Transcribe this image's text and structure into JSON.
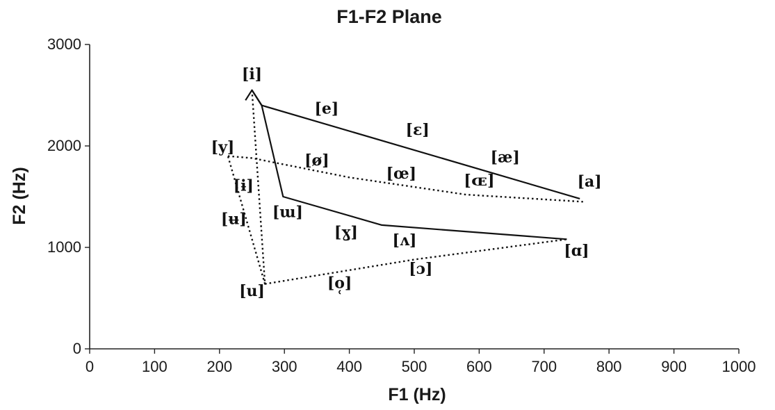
{
  "chart_data": {
    "type": "line",
    "title": "F1-F2 Plane",
    "xlabel": "F1 (Hz)",
    "ylabel": "F2 (Hz)",
    "xlim": [
      0,
      1000
    ],
    "ylim": [
      0,
      3000
    ],
    "x_ticks": [
      0,
      100,
      200,
      300,
      400,
      500,
      600,
      700,
      800,
      900,
      1000
    ],
    "y_ticks": [
      0,
      1000,
      2000,
      3000
    ],
    "grid": false,
    "series": [
      {
        "style": "solid",
        "points": [
          [
            240,
            2450
          ],
          [
            250,
            2550
          ],
          [
            265,
            2400
          ],
          [
            755,
            1480
          ]
        ]
      },
      {
        "style": "solid",
        "points": [
          [
            250,
            2550
          ],
          [
            265,
            2400
          ],
          [
            298,
            1500
          ],
          [
            450,
            1220
          ],
          [
            735,
            1080
          ]
        ]
      },
      {
        "style": "dotted",
        "points": [
          [
            213,
            1900
          ],
          [
            250,
            1880
          ],
          [
            400,
            1690
          ],
          [
            580,
            1520
          ],
          [
            760,
            1450
          ]
        ]
      },
      {
        "style": "dotted",
        "points": [
          [
            270,
            640
          ],
          [
            500,
            880
          ],
          [
            735,
            1080
          ]
        ]
      },
      {
        "style": "dotted",
        "points": [
          [
            250,
            2550
          ],
          [
            270,
            640
          ],
          [
            213,
            1900
          ]
        ]
      }
    ],
    "vowel_labels": [
      {
        "text": "[i]",
        "x": 250,
        "y": 2700
      },
      {
        "text": "[e]",
        "x": 365,
        "y": 2360
      },
      {
        "text": "[ɛ]",
        "x": 505,
        "y": 2150
      },
      {
        "text": "[æ]",
        "x": 640,
        "y": 1880
      },
      {
        "text": "[a]",
        "x": 770,
        "y": 1640
      },
      {
        "text": "[y]",
        "x": 205,
        "y": 1980
      },
      {
        "text": "[ø]",
        "x": 350,
        "y": 1850
      },
      {
        "text": "[œ]",
        "x": 480,
        "y": 1720
      },
      {
        "text": "[ɶ]",
        "x": 600,
        "y": 1650
      },
      {
        "text": "[ɨ]",
        "x": 237,
        "y": 1600
      },
      {
        "text": "[ʉ]",
        "x": 222,
        "y": 1270
      },
      {
        "text": "[ɯ]",
        "x": 305,
        "y": 1340
      },
      {
        "text": "[ɣ]",
        "x": 395,
        "y": 1140
      },
      {
        "text": "[ʌ]",
        "x": 485,
        "y": 1060
      },
      {
        "text": "[ɑ]",
        "x": 750,
        "y": 960
      },
      {
        "text": "[ɔ]",
        "x": 510,
        "y": 780
      },
      {
        "text": "[o̜]",
        "x": 385,
        "y": 640
      },
      {
        "text": "[u]",
        "x": 250,
        "y": 560
      }
    ],
    "colors": {
      "line": "#111111",
      "text": "#1a1a1a",
      "background": "#ffffff"
    }
  }
}
